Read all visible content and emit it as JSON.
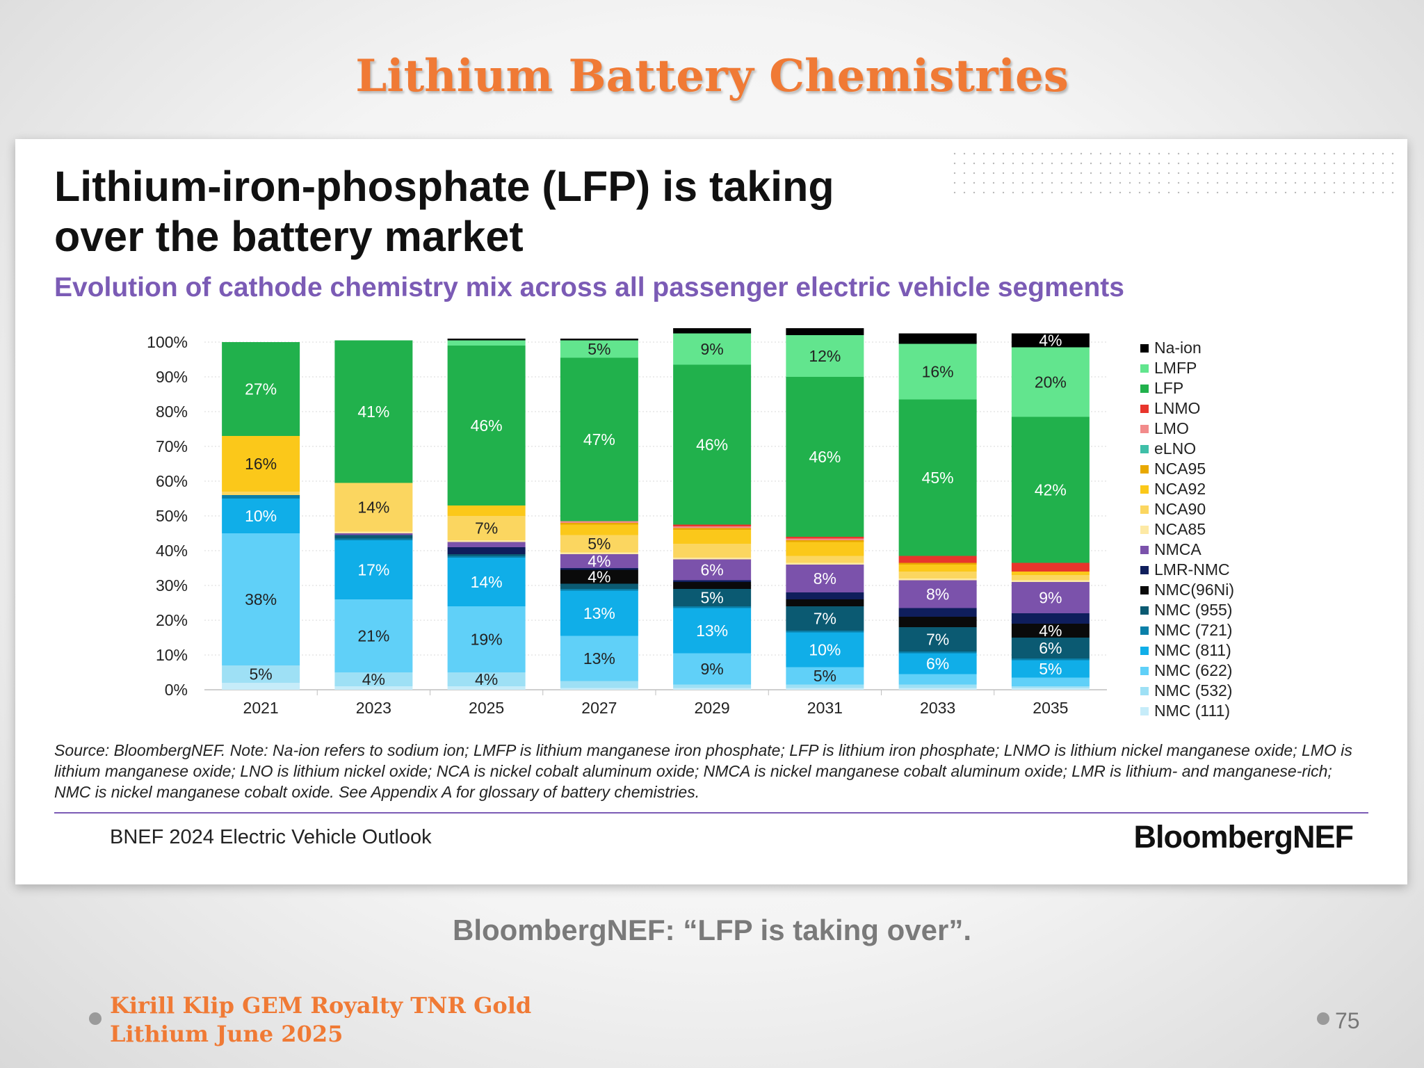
{
  "slide": {
    "title": "Lithium Battery Chemistries",
    "caption": "BloombergNEF: “LFP is taking over”.",
    "footer_line1": "Kirill Klip GEM Royalty TNR Gold",
    "footer_line2": "Lithium June 2025",
    "page_number": "75"
  },
  "card": {
    "headline_line1": "Lithium-iron-phosphate (LFP) is taking",
    "headline_line2": "over the battery market",
    "subtitle": "Evolution of cathode chemistry mix across all passenger electric vehicle segments",
    "source_note": "Source: BloombergNEF. Note: Na-ion refers to sodium ion; LMFP is lithium manganese iron phosphate; LFP is lithium iron phosphate; LNMO is lithium nickel manganese oxide; LMO is lithium manganese oxide; LNO is lithium nickel oxide; NCA is nickel cobalt aluminum oxide; NMCA is nickel manganese cobalt aluminum oxide; LMR is lithium- and manganese-rich; NMC is nickel manganese cobalt oxide. See Appendix A for glossary of battery chemistries.",
    "report_name": "BNEF 2024 Electric Vehicle Outlook",
    "brand": "BloombergNEF"
  },
  "chart_data": {
    "type": "bar",
    "stacked": true,
    "categories": [
      "2021",
      "2023",
      "2025",
      "2027",
      "2029",
      "2031",
      "2033",
      "2035"
    ],
    "yticks": [
      "0%",
      "10%",
      "20%",
      "30%",
      "40%",
      "50%",
      "60%",
      "70%",
      "80%",
      "90%",
      "100%"
    ],
    "ylim": [
      0,
      100
    ],
    "legend_position": "right",
    "series": [
      {
        "name": "NMC (111)",
        "color": "#c6ecf9",
        "values": [
          2,
          1,
          1,
          0.5,
          0.5,
          0.5,
          0.5,
          0.5
        ],
        "labels": [
          "",
          "",
          "",
          "",
          "",
          "",
          "",
          ""
        ]
      },
      {
        "name": "NMC (532)",
        "color": "#9ee0f5",
        "values": [
          5,
          4,
          4,
          2,
          1,
          1,
          1,
          0.5
        ],
        "labels": [
          "5%",
          "4%",
          "4%",
          "",
          "",
          "",
          "",
          ""
        ]
      },
      {
        "name": "NMC (622)",
        "color": "#60d0f8",
        "values": [
          38,
          21,
          19,
          13,
          9,
          5,
          3,
          2.5
        ],
        "labels": [
          "38%",
          "21%",
          "19%",
          "13%",
          "9%",
          "5%",
          "",
          ""
        ]
      },
      {
        "name": "NMC (811)",
        "color": "#10aee8",
        "values": [
          10,
          17,
          14,
          13,
          13,
          10,
          6,
          5
        ],
        "labels": [
          "10%",
          "17%",
          "14%",
          "13%",
          "13%",
          "10%",
          "6%",
          "5%"
        ]
      },
      {
        "name": "NMC (721)",
        "color": "#0a7fa8",
        "values": [
          1,
          0.5,
          0.5,
          0.5,
          0.5,
          0.5,
          0.5,
          0.5
        ],
        "labels": [
          "",
          "",
          "",
          "",
          "",
          "",
          "",
          ""
        ]
      },
      {
        "name": "NMC (955)",
        "color": "#0b5a72",
        "values": [
          0,
          1,
          0.5,
          1.5,
          5,
          7,
          7,
          6
        ],
        "labels": [
          "",
          "",
          "",
          "",
          "5%",
          "7%",
          "7%",
          "6%"
        ]
      },
      {
        "name": "NMC(96Ni)",
        "color": "#0a0a0a",
        "values": [
          0,
          0,
          0,
          4,
          2,
          2,
          3,
          4
        ],
        "labels": [
          "",
          "",
          "",
          "4%",
          "",
          "",
          "",
          "4%"
        ]
      },
      {
        "name": "LMR-NMC",
        "color": "#0f1e5c",
        "values": [
          0,
          0,
          2,
          0.5,
          0.5,
          2,
          2.5,
          3
        ],
        "labels": [
          "",
          "",
          "",
          "",
          "",
          "",
          "",
          ""
        ]
      },
      {
        "name": "NMCA",
        "color": "#7b52ab",
        "values": [
          0,
          0.5,
          1.5,
          4,
          6,
          8,
          8,
          9
        ],
        "labels": [
          "",
          "",
          "",
          "4%",
          "6%",
          "8%",
          "8%",
          "9%"
        ]
      },
      {
        "name": "NCA85",
        "color": "#fde9a5",
        "values": [
          0,
          0.5,
          0.5,
          0.5,
          0.5,
          0.5,
          0.5,
          0.5
        ],
        "labels": [
          "",
          "",
          "",
          "",
          "",
          "",
          "",
          ""
        ]
      },
      {
        "name": "NCA90",
        "color": "#fbd660",
        "values": [
          1,
          14,
          7,
          5,
          4,
          2,
          2,
          1.5
        ],
        "labels": [
          "",
          "14%",
          "7%",
          "5%",
          "",
          "",
          "",
          ""
        ]
      },
      {
        "name": "NCA92",
        "color": "#fbc81a",
        "values": [
          16,
          0,
          3,
          3,
          4,
          4,
          2,
          1
        ],
        "labels": [
          "16%",
          "",
          "",
          "",
          "",
          "",
          "",
          ""
        ]
      },
      {
        "name": "NCA95",
        "color": "#e8a800",
        "values": [
          0,
          0,
          0,
          0.5,
          0.5,
          0.5,
          0.5,
          0
        ],
        "labels": [
          "",
          "",
          "",
          "",
          "",
          "",
          "",
          ""
        ]
      },
      {
        "name": "eLNO",
        "color": "#3fbfa8",
        "values": [
          0,
          0,
          0,
          0,
          0,
          0,
          0,
          0
        ],
        "labels": [
          "",
          "",
          "",
          "",
          "",
          "",
          "",
          ""
        ]
      },
      {
        "name": "LMO",
        "color": "#f28b8b",
        "values": [
          0,
          0,
          0,
          0.5,
          0.5,
          0.5,
          0,
          0
        ],
        "labels": [
          "",
          "",
          "",
          "",
          "",
          "",
          "",
          ""
        ]
      },
      {
        "name": "LNMO",
        "color": "#e8352c",
        "values": [
          0,
          0,
          0,
          0,
          0.5,
          0.5,
          2,
          2.5
        ],
        "labels": [
          "",
          "",
          "",
          "",
          "",
          "",
          "",
          ""
        ]
      },
      {
        "name": "LFP",
        "color": "#21b14c",
        "values": [
          27,
          41,
          46,
          47,
          46,
          46,
          45,
          42
        ],
        "labels": [
          "27%",
          "41%",
          "46%",
          "47%",
          "46%",
          "46%",
          "45%",
          "42%"
        ]
      },
      {
        "name": "LMFP",
        "color": "#62e58e",
        "values": [
          0,
          0,
          1.5,
          5,
          9,
          12,
          16,
          20
        ],
        "labels": [
          "",
          "",
          "",
          "5%",
          "9%",
          "12%",
          "16%",
          "20%"
        ]
      },
      {
        "name": "Na-ion",
        "color": "#000000",
        "values": [
          0,
          0,
          0.5,
          0.5,
          1.5,
          2,
          3,
          4
        ],
        "labels": [
          "",
          "",
          "",
          "",
          "",
          "",
          "",
          "4%"
        ]
      }
    ]
  }
}
